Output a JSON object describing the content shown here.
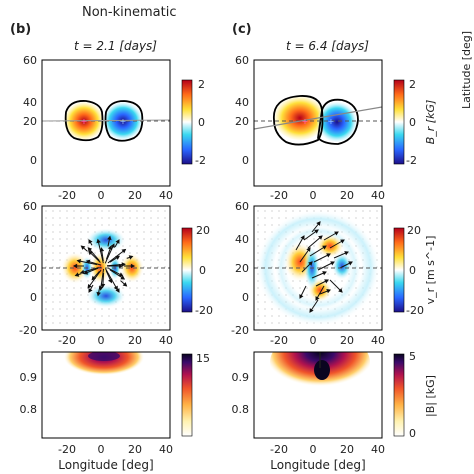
{
  "header": {
    "title": "Non-kinematic"
  },
  "columns": [
    {
      "letter": "(b)",
      "time_label": "t = 2.1  [days]"
    },
    {
      "letter": "(c)",
      "time_label": "t = 6.4  [days]"
    }
  ],
  "xlabel": "Longitude [deg]",
  "right_edge_text": "Latitude [deg]",
  "x_ticks": [
    "-20",
    "0",
    "20",
    "40"
  ],
  "rows": [
    {
      "name": "Br",
      "y_ticks": [
        "0",
        "20",
        "40",
        "60"
      ],
      "colorbar_label": "B_r [kG]",
      "colorbar_ticks": [
        "2",
        "0",
        "-2"
      ],
      "colormap": "diverging"
    },
    {
      "name": "vr",
      "y_ticks": [
        "-20",
        "0",
        "20",
        "40",
        "60"
      ],
      "colorbar_label": "v_r [m s^-1]",
      "colorbar_ticks": [
        "20",
        "0",
        "-20"
      ],
      "colormap": "diverging"
    },
    {
      "name": "B",
      "y_ticks": [
        "0.8",
        "0.9"
      ],
      "colorbar_label": "|B| [kG]",
      "colorbar_ticks": [
        "15",
        "5",
        "0"
      ],
      "colormap": "sequential"
    }
  ],
  "colors": {
    "diverging": [
      "#1d0f8a",
      "#2a66ff",
      "#3ad8f0",
      "#ffffff",
      "#ffe03a",
      "#ff6a1a",
      "#b4001a"
    ],
    "sequential": [
      "#ffffff",
      "#fff2b0",
      "#ffb347",
      "#f0552a",
      "#b0124e",
      "#3a0a6a",
      "#0a0520"
    ]
  }
}
